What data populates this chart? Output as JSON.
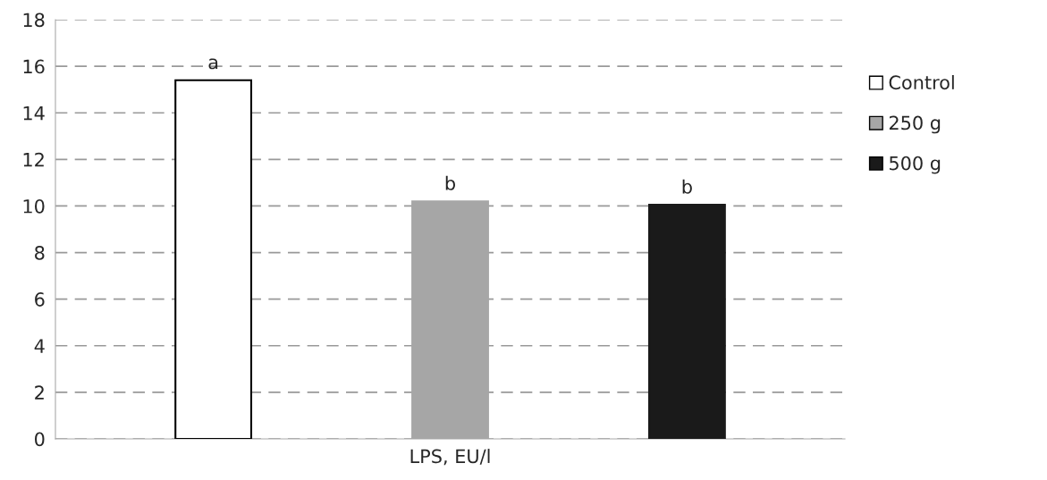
{
  "chart_data": {
    "type": "bar",
    "categories": [
      "LPS, EU/l"
    ],
    "series": [
      {
        "name": "Control",
        "color": "#ffffff",
        "values": [
          15.4
        ],
        "value_labels": [
          "a"
        ]
      },
      {
        "name": "250 g",
        "color": "#a6a6a6",
        "values": [
          10.2
        ],
        "value_labels": [
          "b"
        ]
      },
      {
        "name": "500 g",
        "color": "#1a1a1a",
        "values": [
          10.05
        ],
        "value_labels": [
          "b"
        ]
      }
    ],
    "ylim": [
      0,
      18
    ],
    "yticks": [
      0,
      2,
      4,
      6,
      8,
      10,
      12,
      14,
      16,
      18
    ],
    "grid": "y",
    "legend": "right",
    "line_style": "dashed"
  }
}
